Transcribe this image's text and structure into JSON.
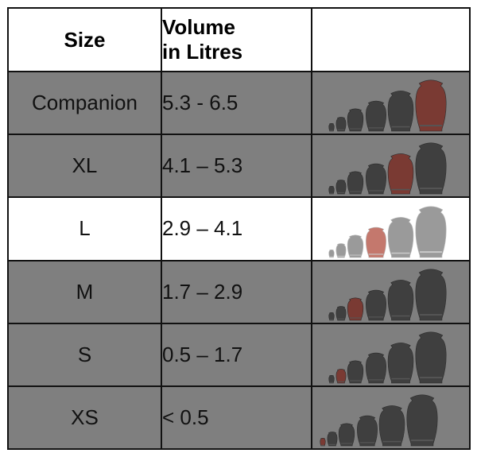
{
  "table": {
    "headers": {
      "size": "Size",
      "volume_line1": "Volume",
      "volume_line2": "in Litres",
      "image": ""
    },
    "rows": [
      {
        "size": "Companion",
        "volume": "5.3 - 6.5",
        "highlight_index": 5,
        "highlight_color": "#7a3a33",
        "style": "gray"
      },
      {
        "size": "XL",
        "volume": "4.1 – 5.3",
        "highlight_index": 4,
        "highlight_color": "#7a3a33",
        "style": "gray"
      },
      {
        "size": "L",
        "volume": "2.9 – 4.1",
        "highlight_index": 3,
        "highlight_color": "#c4786d",
        "style": "white"
      },
      {
        "size": "M",
        "volume": "1.7 – 2.9",
        "highlight_index": 2,
        "highlight_color": "#7a3a33",
        "style": "gray"
      },
      {
        "size": "S",
        "volume": "0.5 – 1.7",
        "highlight_index": 1,
        "highlight_color": "#7a3a33",
        "style": "gray"
      },
      {
        "size": "XS",
        "volume": "< 0.5",
        "highlight_index": 0,
        "highlight_color": "#7a3a33",
        "style": "gray"
      }
    ]
  },
  "colors": {
    "urn_dark": "#3f3f3f",
    "urn_light": "#9a9a9a",
    "gray_row": "#7f7f7f",
    "border": "#111111"
  }
}
